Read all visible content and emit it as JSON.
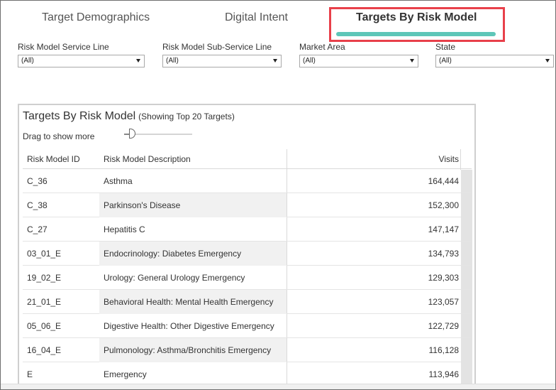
{
  "tabs": [
    {
      "label": "Target Demographics"
    },
    {
      "label": "Digital Intent"
    },
    {
      "label": "Targets By Risk Model"
    }
  ],
  "filters": [
    {
      "label": "Risk Model Service Line",
      "value": "(All)"
    },
    {
      "label": "Risk Model Sub-Service Line",
      "value": "(All)"
    },
    {
      "label": "Market Area",
      "value": "(All)"
    },
    {
      "label": "State",
      "value": "(All)"
    }
  ],
  "panel": {
    "title": "Targets By Risk Model",
    "subtitle": "(Showing Top 20 Targets)",
    "drag_label": "Drag to show more"
  },
  "table": {
    "headers": {
      "id": "Risk Model ID",
      "desc": "Risk Model Description",
      "visits": "Visits"
    },
    "rows": [
      {
        "id": "C_36",
        "desc": "Asthma",
        "visits": "164,444"
      },
      {
        "id": "C_38",
        "desc": "Parkinson's Disease",
        "visits": "152,300"
      },
      {
        "id": "C_27",
        "desc": "Hepatitis C",
        "visits": "147,147"
      },
      {
        "id": "03_01_E",
        "desc": "Endocrinology: Diabetes Emergency",
        "visits": "134,793"
      },
      {
        "id": "19_02_E",
        "desc": "Urology: General Urology Emergency",
        "visits": "129,303"
      },
      {
        "id": "21_01_E",
        "desc": "Behavioral Health: Mental Health Emergency",
        "visits": "123,057"
      },
      {
        "id": "05_06_E",
        "desc": "Digestive Health: Other Digestive Emergency",
        "visits": "122,729"
      },
      {
        "id": "16_04_E",
        "desc": "Pulmonology: Asthma/Bronchitis Emergency",
        "visits": "116,128"
      },
      {
        "id": "E",
        "desc": "Emergency",
        "visits": "113,946"
      }
    ]
  },
  "colors": {
    "accent": "#5ec6b8",
    "highlight": "#e8404a"
  }
}
